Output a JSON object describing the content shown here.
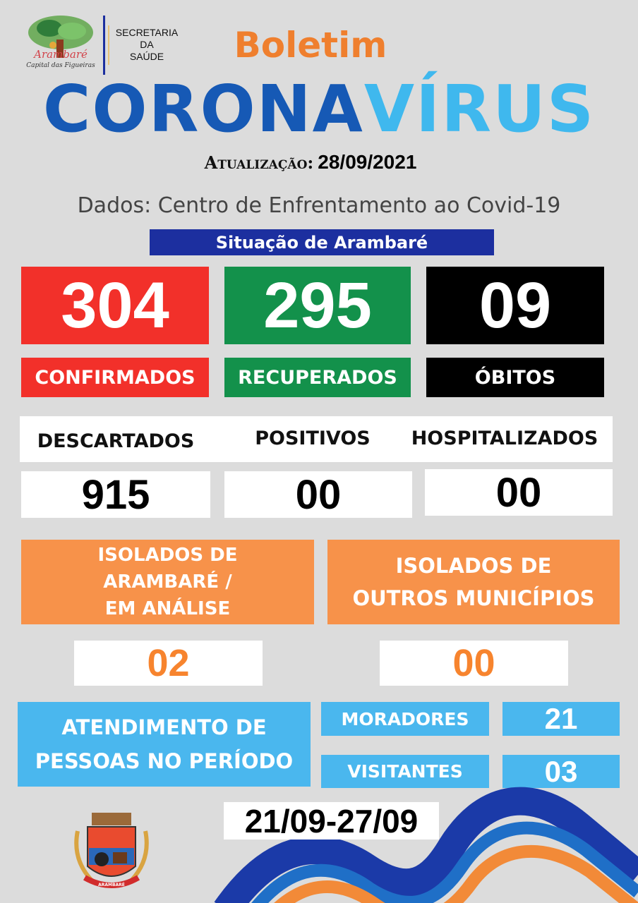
{
  "header": {
    "logo_text": "Arambaré",
    "logo_subtitle": "Capital das Figueiras",
    "department": [
      "SECRETARIA",
      "DA",
      "SAÚDE"
    ],
    "boletim": "Boletim",
    "title_part1": "CORONA",
    "title_part2": "VÍRUS",
    "update_label": "Atualização:",
    "update_date": "28/09/2021",
    "source": "Dados:  Centro de Enfrentamento ao Covid-19",
    "section": "Situação de Arambaré"
  },
  "main_stats": [
    {
      "value": "304",
      "label": "CONFIRMADOS",
      "color": "#f2302a"
    },
    {
      "value": "295",
      "label": "RECUPERADOS",
      "color": "#13914b"
    },
    {
      "value": "09",
      "label": "ÓBITOS",
      "color": "#000000"
    }
  ],
  "secondary_stats": [
    {
      "label": "DESCARTADOS",
      "value": "915"
    },
    {
      "label": "POSITIVOS",
      "value": "00"
    },
    {
      "label": "HOSPITALIZADOS",
      "value": "00"
    }
  ],
  "isolated": [
    {
      "label": [
        "ISOLADOS DE",
        "ARAMBARÉ /",
        "EM ANÁLISE"
      ],
      "value": "02"
    },
    {
      "label": [
        "ISOLADOS DE",
        "OUTROS MUNICÍPIOS"
      ],
      "value": "00"
    }
  ],
  "attendance": {
    "label": [
      "ATENDIMENTO DE",
      "PESSOAS NO PERÍODO"
    ],
    "residents_label": "MORADORES",
    "residents_value": "21",
    "visitors_label": "VISITANTES",
    "visitors_value": "03",
    "period": "21/09-27/09"
  },
  "footer": {
    "crest_text": "ARAMBARÉ"
  },
  "colors": {
    "orange": "#f7924a",
    "light_blue": "#4ab7ee",
    "dark_blue": "#1c2f9f",
    "corona_blue": "#1659b5",
    "virus_blue": "#3fb8ee"
  }
}
